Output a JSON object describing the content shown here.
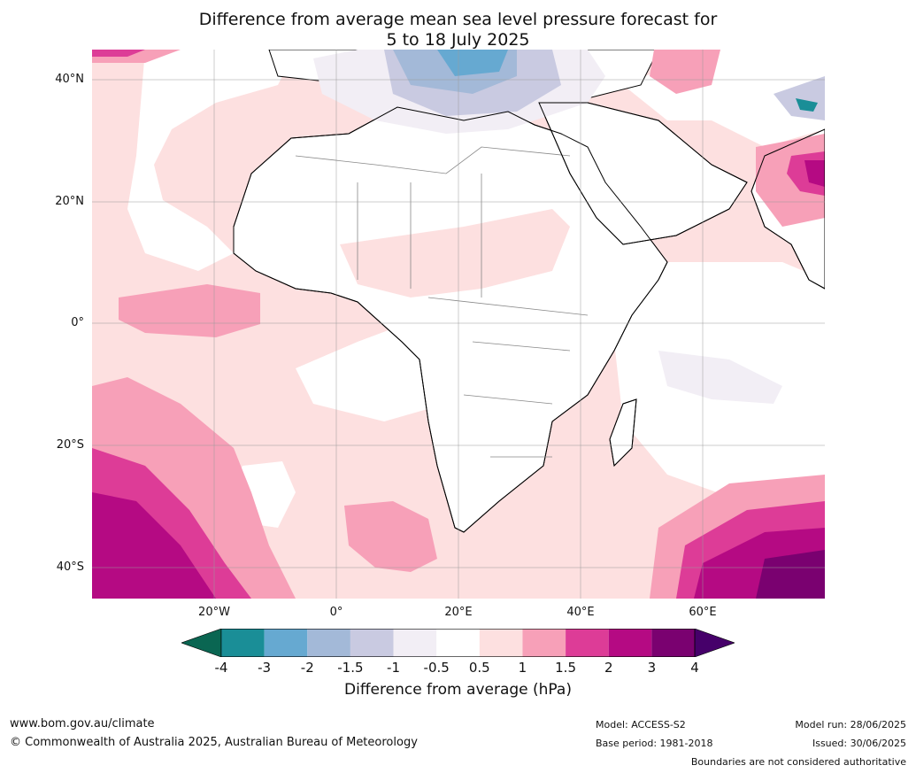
{
  "title": {
    "line1": "Difference from average mean sea level pressure forecast for",
    "line2": "5 to 18 July 2025"
  },
  "map": {
    "lat_labels": [
      "40°N",
      "20°N",
      "0°",
      "20°S",
      "40°S"
    ],
    "lon_labels": [
      "20°W",
      "0°",
      "20°E",
      "40°E",
      "60°E"
    ],
    "ocean_color": "#fde0e0",
    "land_color": "#ffffff"
  },
  "colorbar": {
    "ticks": [
      "-4",
      "-3",
      "-2",
      "-1.5",
      "-1",
      "-0.5",
      "0.5",
      "1",
      "1.5",
      "2",
      "3",
      "4"
    ],
    "colors": {
      "below": "#0a6652",
      "bins": [
        "#1a8e97",
        "#66a9d1",
        "#a3b9d8",
        "#c9cae1",
        "#f2eef5",
        "#ffffff",
        "#fde0e0",
        "#f7a0b8",
        "#dd3c97",
        "#b50a83",
        "#7a0170"
      ],
      "above": "#46006a"
    },
    "label": "Difference from average (hPa)"
  },
  "footer": {
    "website": "www.bom.gov.au/climate",
    "copyright": "© Commonwealth of Australia 2025, Australian Bureau of Meteorology",
    "model": "Model: ACCESS-S2",
    "base_period": "Base period: 1981-2018",
    "model_run": "Model run: 28/06/2025",
    "issued": "Issued: 30/06/2025",
    "disclaimer": "Boundaries are not considered authoritative"
  }
}
